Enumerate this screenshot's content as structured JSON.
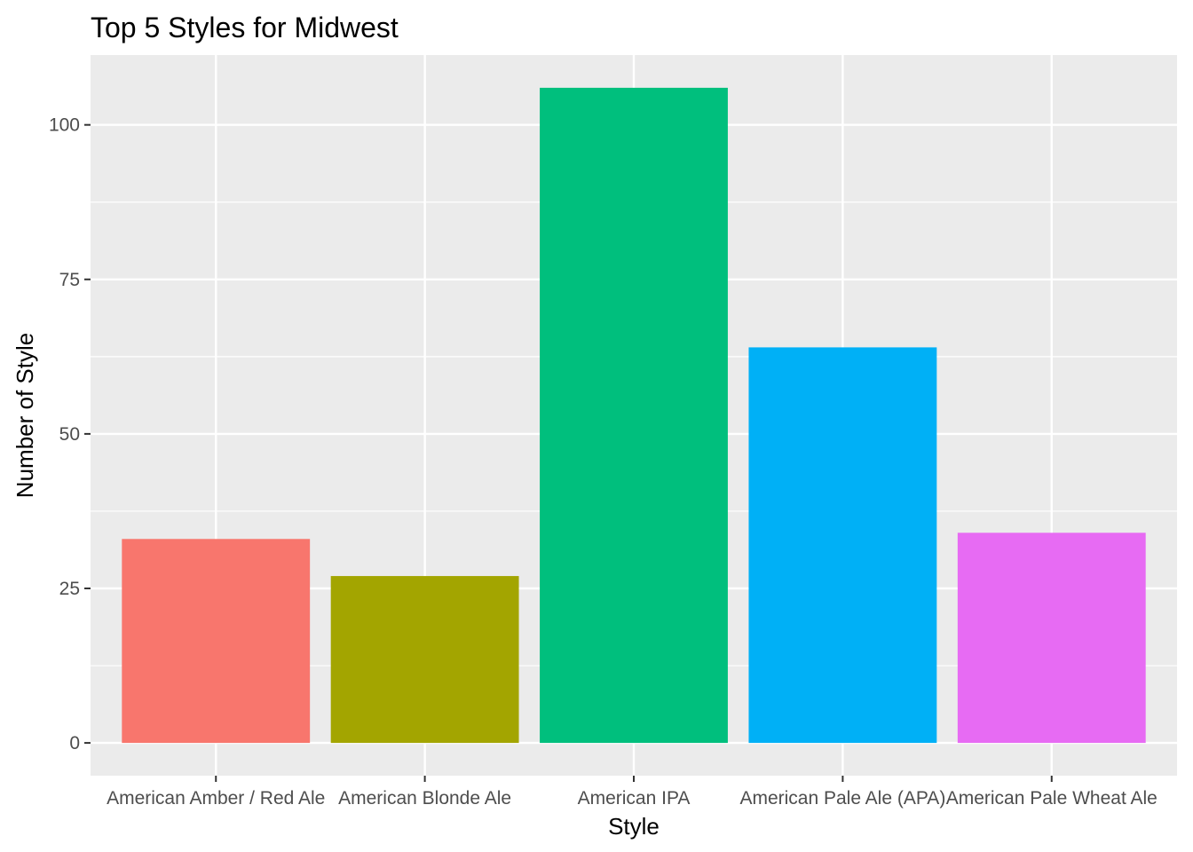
{
  "chart_data": {
    "type": "bar",
    "title": "Top 5 Styles for Midwest",
    "xlabel": "Style",
    "ylabel": "Number of Style",
    "categories": [
      "American Amber / Red Ale",
      "American Blonde Ale",
      "American IPA",
      "American Pale Ale (APA)",
      "American Pale Wheat Ale"
    ],
    "values": [
      33,
      27,
      106,
      64,
      34
    ],
    "colors": [
      "#F8766D",
      "#A3A500",
      "#00BF7D",
      "#00B0F6",
      "#E76BF3"
    ],
    "ylim": [
      -5.3,
      111.3
    ],
    "yticks": [
      0,
      25,
      50,
      75,
      100
    ],
    "grid": true,
    "legend": "none",
    "panel_background": "#EBEBEB"
  }
}
